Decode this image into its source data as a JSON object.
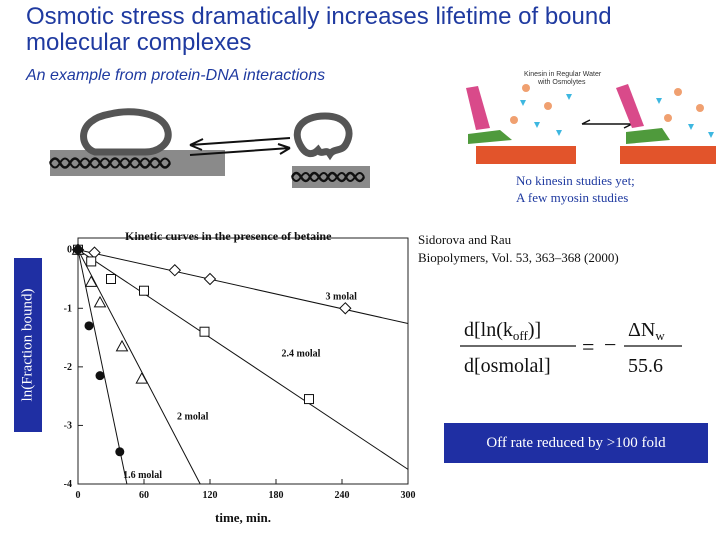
{
  "slide": {
    "title": "Osmotic stress dramatically increases lifetime of bound molecular complexes",
    "subtitle": "An example from protein-DNA interactions",
    "kinesin_note": [
      "No kinesin studies yet;",
      "A few myosin studies"
    ],
    "kinesin_label": [
      "Kinesin in Regular Water",
      "with Osmolytes"
    ],
    "citation": [
      "Sidorova and Rau",
      "Biopolymers, Vol. 53, 363–368 (2000)"
    ],
    "off_rate": "Off rate reduced by >100 fold",
    "formula": {
      "lhs_num": "d[ln(k",
      "lhs_num_sub": "off",
      "lhs_num_end": ")]",
      "lhs_den": "d[osmolal]",
      "equals": "=",
      "minus": "−",
      "rhs_num": "ΔN",
      "rhs_num_sub": "w",
      "rhs_den": "55.6"
    },
    "colors": {
      "title": "#1f3aa0",
      "highlight_box": "#1f2fa3",
      "ylabel_box": "#1f2fa3"
    }
  },
  "chart_data": {
    "type": "scatter",
    "title": "Kinetic curves in the presence of betaine",
    "xlabel": "time, min.",
    "ylabel": "ln(Fraction bound)",
    "xlim": [
      0,
      300
    ],
    "ylim": [
      -4,
      0.2
    ],
    "xticks": [
      0,
      60,
      120,
      180,
      240,
      300
    ],
    "yticks": [
      0,
      -1,
      -2,
      -3,
      -4
    ],
    "series": [
      {
        "name": "3 molal",
        "marker": "diamond",
        "fit_slope": -0.0042,
        "x": [
          0,
          15,
          88,
          120,
          243
        ],
        "y": [
          0,
          -0.05,
          -0.35,
          -0.5,
          -1.0
        ]
      },
      {
        "name": "2.4 molal",
        "marker": "square",
        "fit_slope": -0.0125,
        "x": [
          0,
          12,
          30,
          60,
          115,
          210
        ],
        "y": [
          0,
          -0.2,
          -0.5,
          -0.7,
          -1.4,
          -2.55
        ]
      },
      {
        "name": "2 molal",
        "marker": "triangle",
        "fit_slope": -0.036,
        "x": [
          0,
          12,
          20,
          40,
          58
        ],
        "y": [
          0,
          -0.55,
          -0.9,
          -1.65,
          -2.2
        ]
      },
      {
        "name": "1.6 molal",
        "marker": "circle",
        "fit_slope": -0.09,
        "x": [
          0,
          10,
          20,
          38
        ],
        "y": [
          0,
          -1.3,
          -2.15,
          -3.45
        ]
      }
    ],
    "annotations": [
      {
        "text": "3 molal",
        "x": 225,
        "y": -0.85
      },
      {
        "text": "2.4 molal",
        "x": 185,
        "y": -1.82
      },
      {
        "text": "2 molal",
        "x": 90,
        "y": -2.9
      },
      {
        "text": "1.6 molal",
        "x": 41,
        "y": -3.9
      }
    ]
  }
}
